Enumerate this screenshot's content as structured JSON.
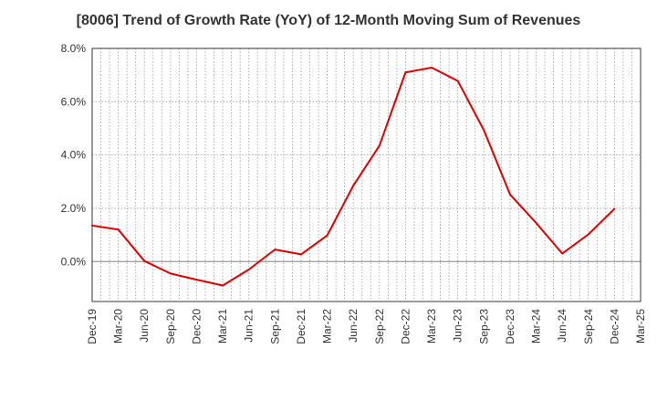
{
  "chart_data": {
    "type": "line",
    "title": "[8006]  Trend of Growth Rate (YoY) of 12-Month Moving Sum of Revenues",
    "xlabel": "",
    "ylabel": "",
    "x_tick_labels": [
      "Dec-19",
      "Mar-20",
      "Jun-20",
      "Sep-20",
      "Dec-20",
      "Mar-21",
      "Jun-21",
      "Sep-21",
      "Dec-21",
      "Mar-22",
      "Jun-22",
      "Sep-22",
      "Dec-22",
      "Mar-23",
      "Jun-23",
      "Sep-23",
      "Dec-23",
      "Mar-24",
      "Jun-24",
      "Sep-24",
      "Dec-24",
      "Mar-25"
    ],
    "y_tick_labels": [
      "8.0%",
      "6.0%",
      "4.0%",
      "2.0%",
      "0.0%"
    ],
    "y_ticks": [
      8.0,
      6.0,
      4.0,
      2.0,
      0.0
    ],
    "ylim": [
      -1.5,
      8.0
    ],
    "grid": true,
    "series": [
      {
        "color": "#e00000",
        "x": [
          "Dec-19",
          "Mar-20",
          "Jun-20",
          "Sep-20",
          "Dec-20",
          "Mar-21",
          "Jun-21",
          "Sep-21",
          "Dec-21",
          "Mar-22",
          "Jun-22",
          "Sep-22",
          "Dec-22",
          "Mar-23",
          "Jun-23",
          "Sep-23",
          "Dec-23",
          "Mar-24",
          "Jun-24",
          "Sep-24",
          "Dec-24"
        ],
        "values": [
          1.35,
          1.2,
          0.02,
          -0.45,
          -0.68,
          -0.9,
          -0.3,
          0.45,
          0.27,
          0.98,
          2.85,
          4.35,
          7.1,
          7.28,
          6.78,
          4.93,
          2.52,
          1.45,
          0.3,
          1.02,
          1.98
        ]
      }
    ]
  }
}
